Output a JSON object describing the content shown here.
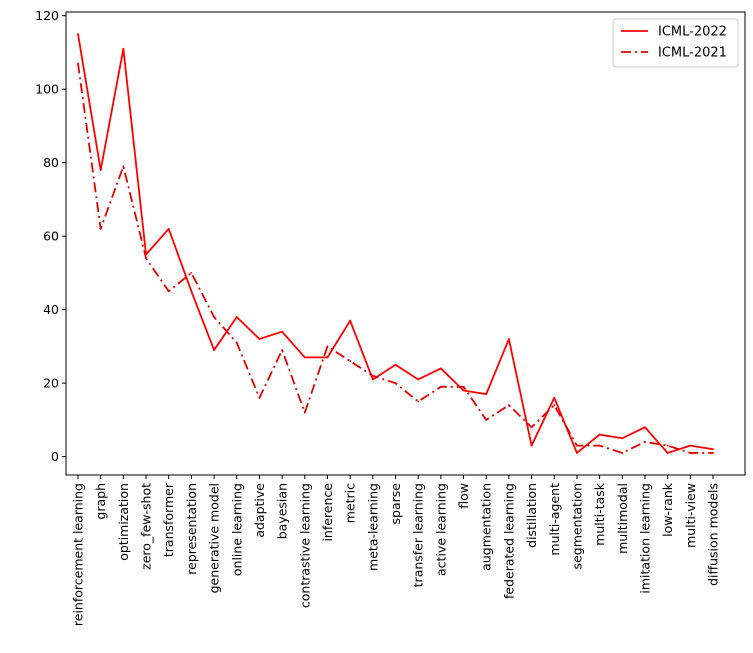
{
  "chart_data": {
    "type": "line",
    "title": "",
    "xlabel": "",
    "ylabel": "",
    "ylim": [
      -5,
      121
    ],
    "yticks": [
      0,
      20,
      40,
      60,
      80,
      100,
      120
    ],
    "grid": false,
    "legend_position": "top-right",
    "categories": [
      "reinforcement learning",
      "graph",
      "optimization",
      "zero_few-shot",
      "transformer",
      "representation",
      "generative model",
      "online learning",
      "adaptive",
      "bayesian",
      "contrastive learning",
      "inference",
      "metric",
      "meta-learning",
      "sparse",
      "transfer learning",
      "active learning",
      "flow",
      "augmentation",
      "federated learning",
      "distillation",
      "multi-agent",
      "segmentation",
      "multi-task",
      "multimodal",
      "imitation learning",
      "low-rank",
      "multi-view",
      "diffusion models"
    ],
    "series": [
      {
        "name": "ICML-2022",
        "color": "#ff0000",
        "dash": "solid",
        "values": [
          115,
          78,
          111,
          55,
          62,
          45,
          29,
          38,
          32,
          34,
          27,
          27,
          37,
          21,
          25,
          21,
          24,
          18,
          17,
          32,
          3,
          16,
          1,
          6,
          5,
          8,
          1,
          3,
          2
        ]
      },
      {
        "name": "ICML-2021",
        "color": "#e00000",
        "dash": "dashdot",
        "values": [
          107,
          62,
          79,
          54,
          45,
          50,
          38,
          31,
          16,
          29,
          12,
          30,
          26,
          22,
          20,
          15,
          19,
          19,
          10,
          14,
          8,
          14,
          3,
          3,
          1,
          4,
          3,
          1,
          1
        ]
      }
    ]
  }
}
